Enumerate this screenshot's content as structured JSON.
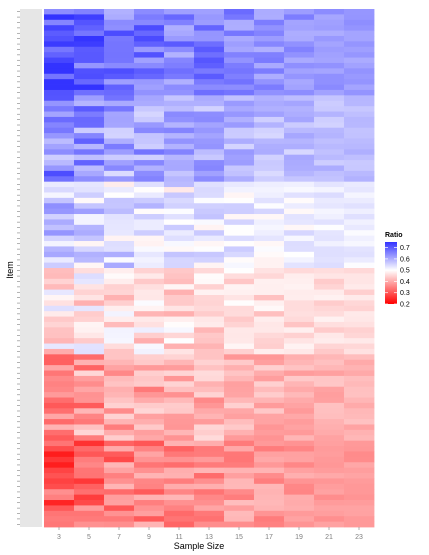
{
  "chart_data": {
    "type": "heatmap",
    "xlabel": "Sample Size",
    "ylabel": "Item",
    "x": [
      3,
      5,
      7,
      9,
      11,
      13,
      15,
      17,
      19,
      21,
      23
    ],
    "x_tick_labels": [
      "3",
      "5",
      "7",
      "9",
      "11",
      "13",
      "15",
      "17",
      "19",
      "21",
      "23"
    ],
    "y_tick_labels_visible": false,
    "row_count": 96,
    "row_groups": [
      {
        "rows": 16,
        "values": [
          0.72,
          0.7,
          0.66,
          0.67,
          0.65,
          0.66,
          0.64,
          0.63,
          0.63,
          0.62,
          0.62
        ]
      },
      {
        "rows": 16,
        "values": [
          0.64,
          0.63,
          0.61,
          0.61,
          0.6,
          0.6,
          0.59,
          0.58,
          0.58,
          0.58,
          0.58
        ]
      },
      {
        "rows": 16,
        "values": [
          0.56,
          0.55,
          0.54,
          0.54,
          0.53,
          0.53,
          0.52,
          0.52,
          0.52,
          0.52,
          0.52
        ]
      },
      {
        "rows": 16,
        "values": [
          0.48,
          0.47,
          0.46,
          0.46,
          0.46,
          0.46,
          0.46,
          0.46,
          0.46,
          0.46,
          0.46
        ]
      },
      {
        "rows": 16,
        "values": [
          0.38,
          0.38,
          0.39,
          0.4,
          0.41,
          0.41,
          0.41,
          0.41,
          0.41,
          0.41,
          0.41
        ]
      },
      {
        "rows": 16,
        "values": [
          0.3,
          0.32,
          0.35,
          0.36,
          0.37,
          0.37,
          0.38,
          0.38,
          0.38,
          0.38,
          0.38
        ]
      }
    ],
    "color_scale": {
      "title": "Ratio",
      "min": 0.2,
      "mid": 0.5,
      "max": 0.75,
      "low_color": "#ff0000",
      "mid_color": "#ffffff",
      "high_color": "#3333ff",
      "breaks": [
        0.7,
        0.6,
        0.5,
        0.4,
        0.3,
        0.2
      ],
      "break_labels": [
        "0.7",
        "0.6",
        "0.5",
        "0.4",
        "0.3",
        "0.2"
      ]
    },
    "legend_position": "right",
    "grid": false
  }
}
